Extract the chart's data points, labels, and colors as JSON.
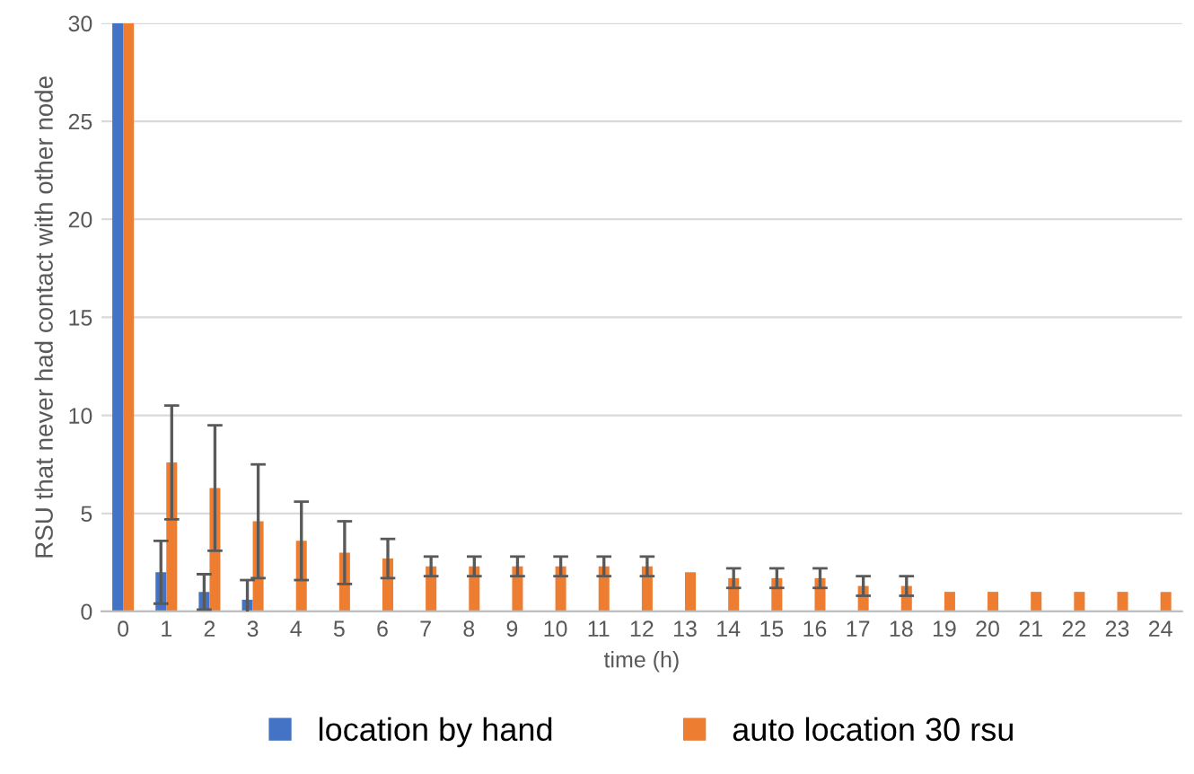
{
  "chart_data": {
    "type": "bar",
    "xlabel": "time (h)",
    "ylabel": "RSU that never had contact with other node",
    "categories": [
      "0",
      "1",
      "2",
      "3",
      "4",
      "5",
      "6",
      "7",
      "8",
      "9",
      "10",
      "11",
      "12",
      "13",
      "14",
      "15",
      "16",
      "17",
      "18",
      "19",
      "20",
      "21",
      "22",
      "23",
      "24"
    ],
    "series": [
      {
        "name": "location by hand",
        "color": "#4472c4",
        "values": [
          30,
          2.0,
          1.0,
          0.6,
          0,
          0,
          0,
          0,
          0,
          0,
          0,
          0,
          0,
          0,
          0,
          0,
          0,
          0,
          0,
          0,
          0,
          0,
          0,
          0,
          0
        ],
        "errors": [
          null,
          1.6,
          0.9,
          1.0,
          null,
          null,
          null,
          null,
          null,
          null,
          null,
          null,
          null,
          null,
          null,
          null,
          null,
          null,
          null,
          null,
          null,
          null,
          null,
          null,
          null
        ]
      },
      {
        "name": "auto location 30 rsu",
        "color": "#ed7d31",
        "values": [
          30,
          7.6,
          6.3,
          4.6,
          3.6,
          3.0,
          2.7,
          2.3,
          2.3,
          2.3,
          2.3,
          2.3,
          2.3,
          2.0,
          1.7,
          1.7,
          1.7,
          1.3,
          1.3,
          1.0,
          1.0,
          1.0,
          1.0,
          1.0,
          1.0
        ],
        "errors": [
          null,
          2.9,
          3.2,
          2.9,
          2.0,
          1.6,
          1.0,
          0.5,
          0.5,
          0.5,
          0.5,
          0.5,
          0.5,
          null,
          0.5,
          0.5,
          0.5,
          0.5,
          0.5,
          null,
          null,
          null,
          null,
          null,
          null
        ]
      }
    ],
    "ylim": [
      0,
      30
    ],
    "yticks": [
      0,
      5,
      10,
      15,
      20,
      25,
      30
    ],
    "grid": "y",
    "legend": "bottom"
  }
}
